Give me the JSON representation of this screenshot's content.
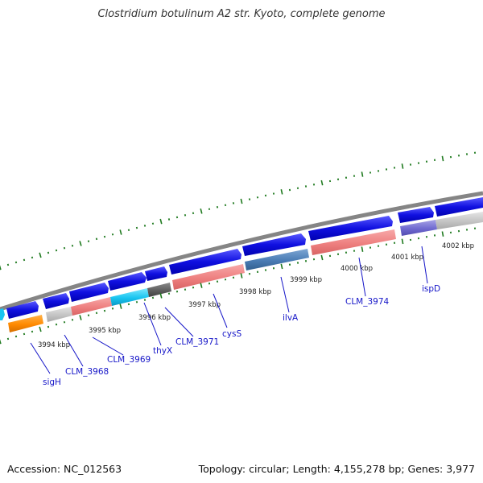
{
  "title": "Clostridium botulinum A2 str. Kyoto, complete genome",
  "accession": "Accession: NC_012563",
  "summary": "Topology: circular; Length: 4,155,278 bp; Genes: 3,977",
  "colors": {
    "backbone": "#8a8a8a",
    "forward_gene": "#1010e0",
    "tick": "#1f7a1f",
    "label": "#1515c8"
  },
  "kbp_ticks": [
    {
      "label": "3994 kbp"
    },
    {
      "label": "3995 kbp"
    },
    {
      "label": "3996 kbp"
    },
    {
      "label": "3997 kbp"
    },
    {
      "label": "3998 kbp"
    },
    {
      "label": "3999 kbp"
    },
    {
      "label": "4000 kbp"
    },
    {
      "label": "4001 kbp"
    },
    {
      "label": "4002 kbp"
    }
  ],
  "gene_labels": [
    {
      "name": "sigH"
    },
    {
      "name": "CLM_3968"
    },
    {
      "name": "CLM_3969"
    },
    {
      "name": "thyX"
    },
    {
      "name": "CLM_3971"
    },
    {
      "name": "cysS"
    },
    {
      "name": "ilvA"
    },
    {
      "name": "CLM_3974"
    },
    {
      "name": "ispD"
    }
  ]
}
